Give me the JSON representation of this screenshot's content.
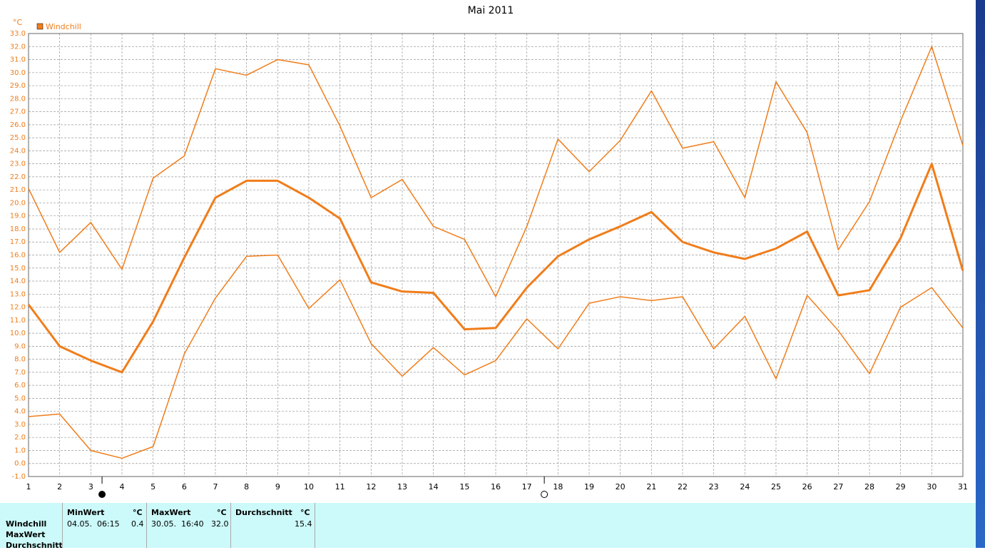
{
  "chart_data": {
    "type": "line",
    "title": "Mai 2011",
    "y_unit": "°C",
    "legend": "Windchill",
    "legend_color": "#f07d1a",
    "grid": true,
    "x": [
      1,
      2,
      3,
      4,
      5,
      6,
      7,
      8,
      9,
      10,
      11,
      12,
      13,
      14,
      15,
      16,
      17,
      18,
      19,
      20,
      21,
      22,
      23,
      24,
      25,
      26,
      27,
      28,
      29,
      30,
      31
    ],
    "xlim": [
      1,
      31
    ],
    "xticks": [
      1,
      2,
      3,
      4,
      5,
      6,
      7,
      8,
      9,
      10,
      11,
      12,
      13,
      14,
      15,
      16,
      17,
      18,
      19,
      20,
      21,
      22,
      23,
      24,
      25,
      26,
      27,
      28,
      29,
      30,
      31
    ],
    "ylim": [
      -1,
      33
    ],
    "yticks": [
      {
        "value": -1,
        "label": "-1.0"
      },
      {
        "value": 0,
        "label": "0.0"
      },
      {
        "value": 1,
        "label": "1.0"
      },
      {
        "value": 2,
        "label": "2.0"
      },
      {
        "value": 3,
        "label": "3.0"
      },
      {
        "value": 4,
        "label": "4.0"
      },
      {
        "value": 5,
        "label": "5.0"
      },
      {
        "value": 6,
        "label": "6.0"
      },
      {
        "value": 7,
        "label": "7.0"
      },
      {
        "value": 8,
        "label": "8.0"
      },
      {
        "value": 9,
        "label": "9.0"
      },
      {
        "value": 10,
        "label": "10.0"
      },
      {
        "value": 11,
        "label": "11.0"
      },
      {
        "value": 12,
        "label": "12.0"
      },
      {
        "value": 13,
        "label": "13.0"
      },
      {
        "value": 14,
        "label": "14.0"
      },
      {
        "value": 15,
        "label": "15.0"
      },
      {
        "value": 16,
        "label": "16.0"
      },
      {
        "value": 17,
        "label": "17.0"
      },
      {
        "value": 18,
        "label": "18.0"
      },
      {
        "value": 19,
        "label": "19.0"
      },
      {
        "value": 20,
        "label": "20.0"
      },
      {
        "value": 21,
        "label": "21.0"
      },
      {
        "value": 22,
        "label": "22.0"
      },
      {
        "value": 23,
        "label": "23.0"
      },
      {
        "value": 24,
        "label": "24.0"
      },
      {
        "value": 25,
        "label": "25.0"
      },
      {
        "value": 26,
        "label": "26.0"
      },
      {
        "value": 27,
        "label": "27.0"
      },
      {
        "value": 28,
        "label": "28.0"
      },
      {
        "value": 29,
        "label": "29.0"
      },
      {
        "value": 30,
        "label": "30.0"
      },
      {
        "value": 31,
        "label": "31.0"
      },
      {
        "value": 32,
        "label": "32.0"
      },
      {
        "value": 33,
        "label": "33.0"
      }
    ],
    "series": [
      {
        "color": "#f07d1a",
        "line_width": 1.5,
        "values": [
          21.1,
          16.2,
          18.5,
          14.9,
          21.9,
          23.6,
          30.3,
          29.8,
          31.0,
          30.6,
          25.9,
          20.4,
          21.8,
          18.2,
          17.2,
          12.8,
          18.2,
          24.9,
          22.4,
          24.8,
          28.6,
          24.2,
          24.7,
          20.4,
          29.3,
          25.4,
          16.4,
          20.1,
          26.3,
          32.0,
          24.4
        ]
      },
      {
        "color": "#f07d1a",
        "line_width": 3,
        "values": [
          12.2,
          9.0,
          7.9,
          7.0,
          10.9,
          15.8,
          20.4,
          21.7,
          21.7,
          20.4,
          18.8,
          13.9,
          13.2,
          13.1,
          10.3,
          10.4,
          13.5,
          15.9,
          17.2,
          18.2,
          19.3,
          17.0,
          16.2,
          15.7,
          16.5,
          17.8,
          12.9,
          13.3,
          17.3,
          23.0,
          14.8
        ]
      },
      {
        "color": "#f07d1a",
        "line_width": 1.5,
        "values": [
          3.6,
          3.8,
          1.0,
          0.4,
          1.3,
          8.4,
          12.7,
          15.9,
          16.0,
          11.9,
          14.1,
          9.2,
          6.7,
          8.9,
          6.8,
          7.9,
          11.1,
          8.8,
          12.3,
          12.8,
          12.5,
          12.8,
          8.8,
          11.3,
          6.5,
          12.9,
          10.2,
          6.9,
          12.0,
          13.5,
          10.4
        ]
      }
    ],
    "moon_markers": [
      {
        "x": 3.36,
        "filled": true
      },
      {
        "x": 17.56,
        "filled": false
      }
    ]
  },
  "table": {
    "row_labels": [
      "Windchill",
      "MaxWert",
      "Durchschnitt"
    ],
    "columns": [
      {
        "header": "MinWert",
        "unit": "°C",
        "time": "04.05.  06:15",
        "value": "0.4"
      },
      {
        "header": "MaxWert",
        "unit": "°C",
        "time": "30.05.  16:40",
        "value": "32.0"
      },
      {
        "header": "Durchschnitt",
        "unit": "°C",
        "time": "",
        "value": "15.4"
      }
    ]
  }
}
